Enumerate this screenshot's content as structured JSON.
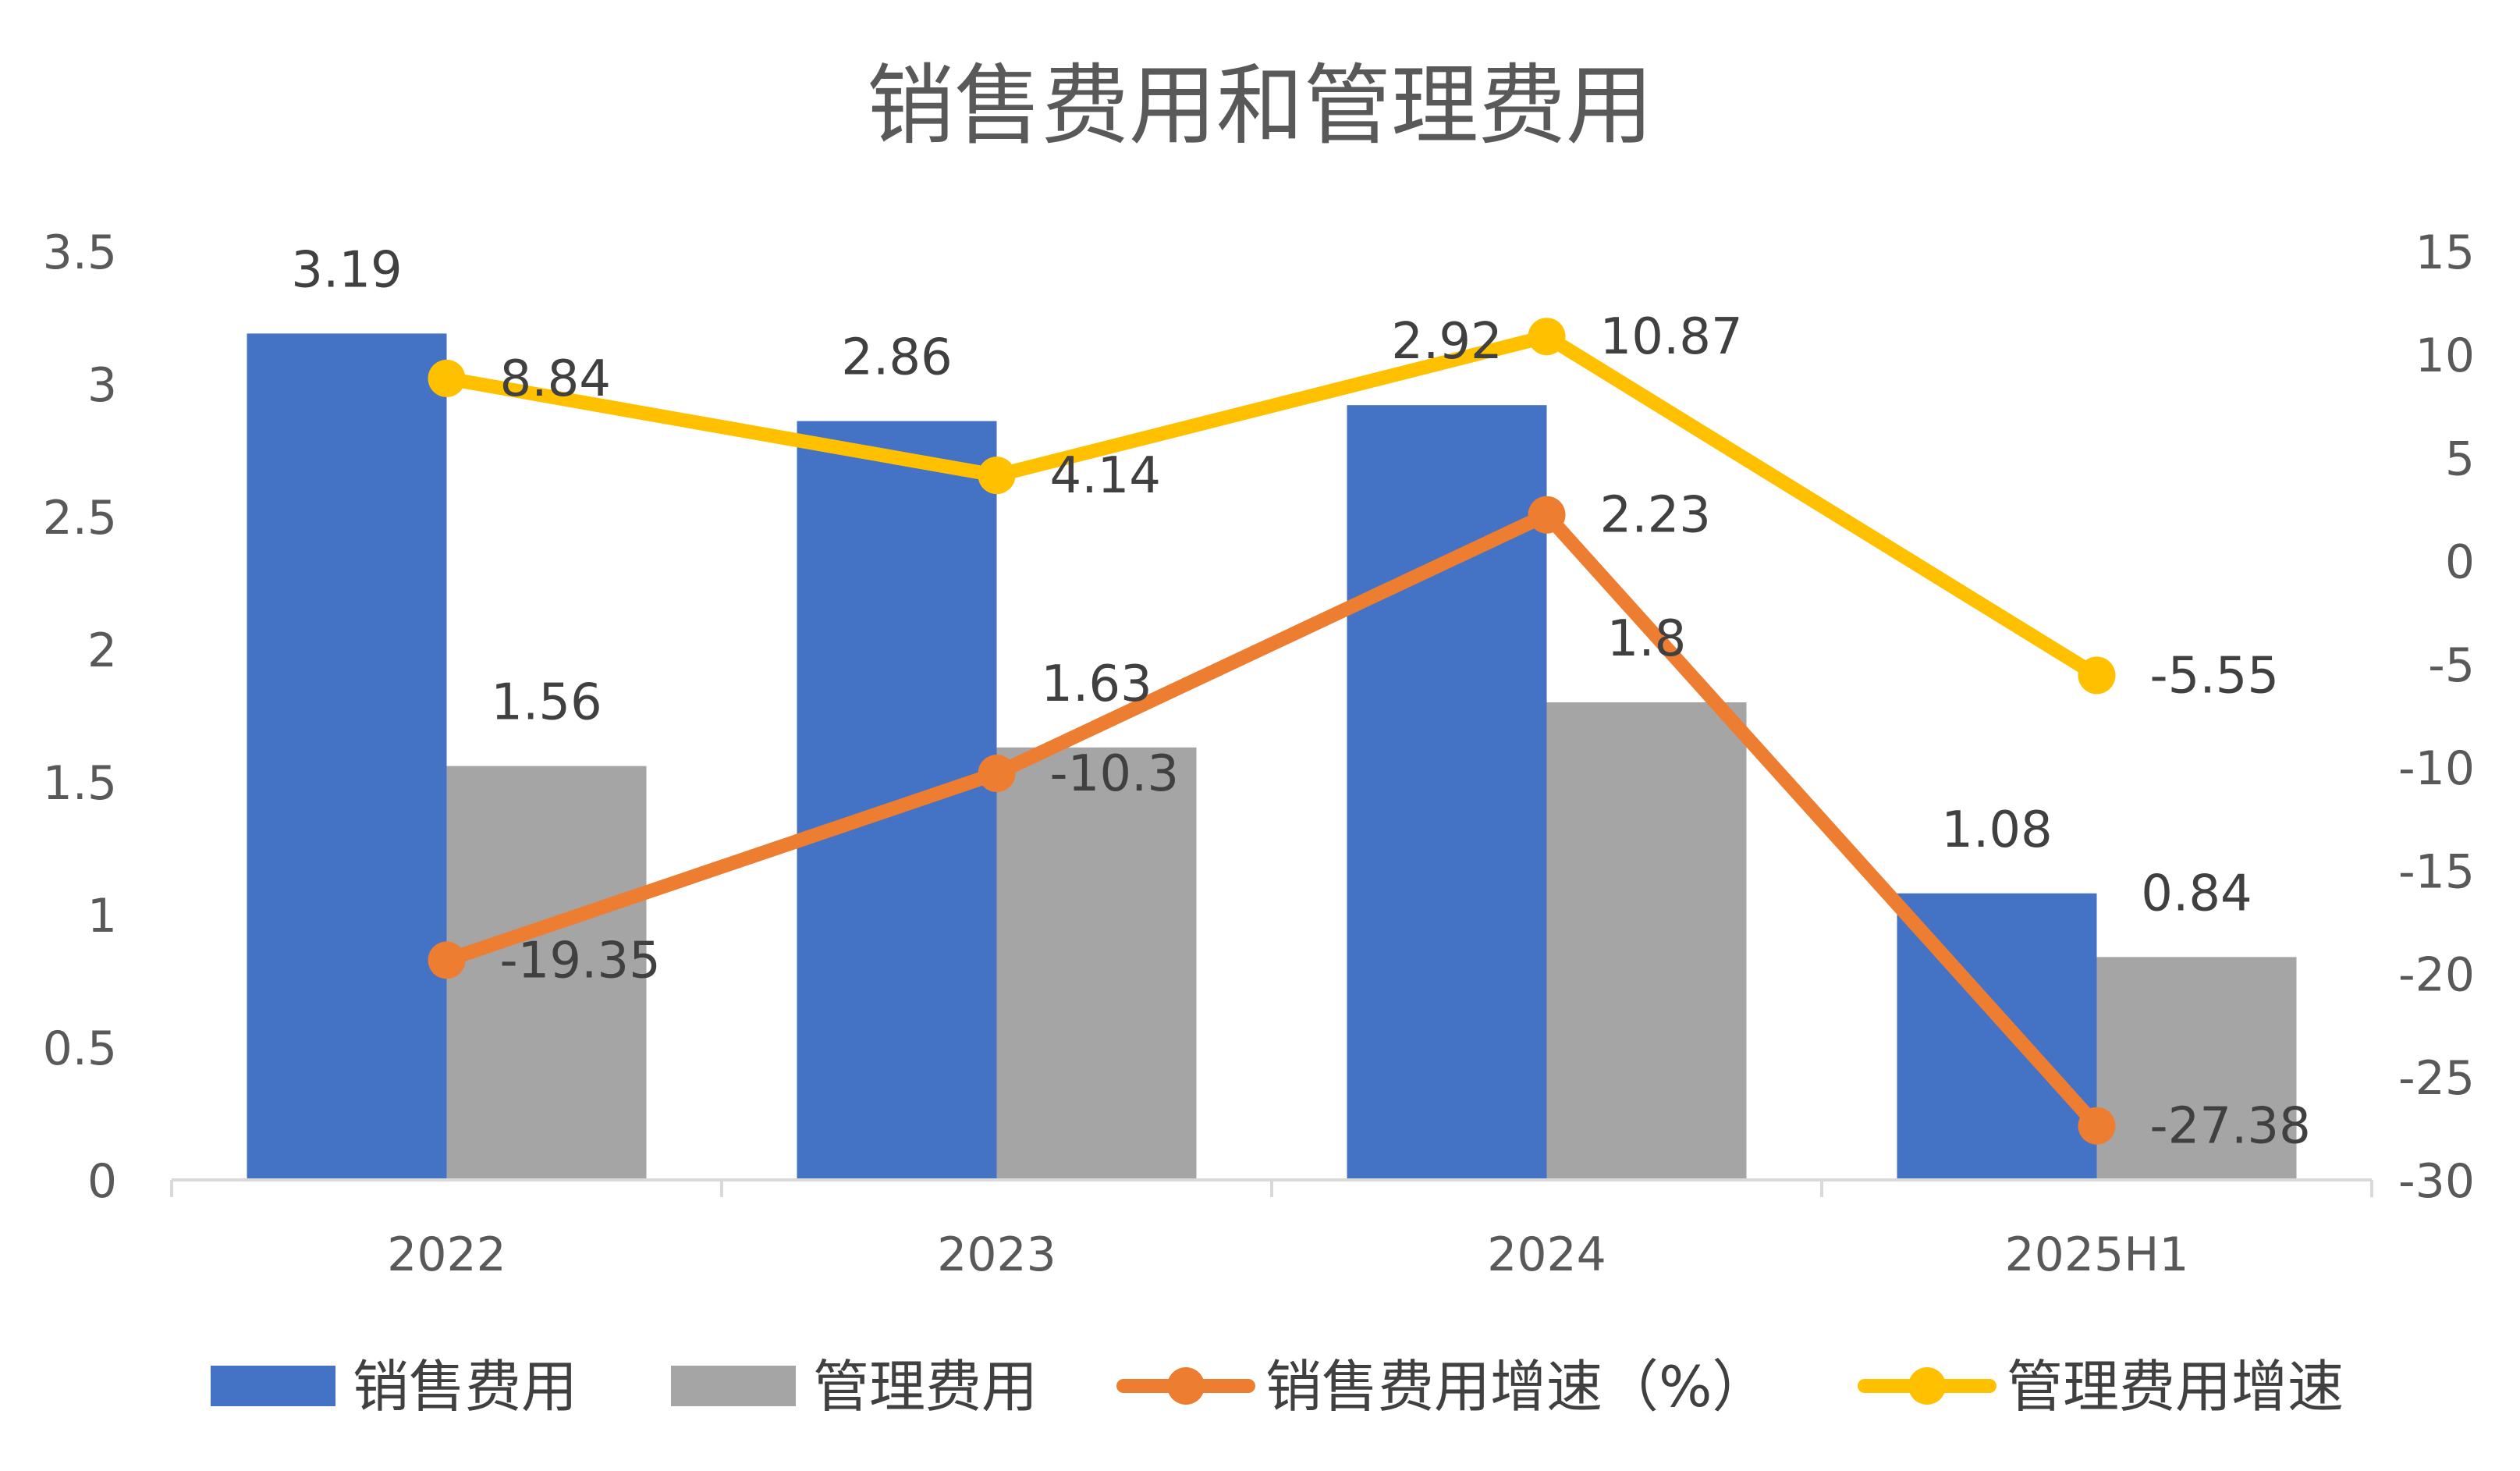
{
  "chart_data": {
    "type": "bar",
    "title": "销售费用和管理费用",
    "categories": [
      "2022",
      "2023",
      "2024",
      "2025H1"
    ],
    "bar_series": [
      {
        "name": "销售费用",
        "values": [
          3.19,
          2.86,
          2.92,
          1.08
        ],
        "labels": [
          "3.19",
          "2.86",
          "2.92",
          "1.08"
        ],
        "color": "#4472C4"
      },
      {
        "name": "管理费用",
        "values": [
          1.56,
          1.63,
          1.8,
          0.84
        ],
        "labels": [
          "1.56",
          "1.63",
          "1.8",
          "0.84"
        ],
        "color": "#A5A5A5"
      }
    ],
    "line_series": [
      {
        "name": "销售费用增速（%）",
        "values": [
          -19.35,
          -10.3,
          2.23,
          -27.38
        ],
        "labels": [
          "-19.35",
          "-10.3",
          "2.23",
          "-27.38"
        ],
        "color": "#ED7D31",
        "axis": "right"
      },
      {
        "name": "管理费用增速",
        "values": [
          8.84,
          4.14,
          10.87,
          -5.55
        ],
        "labels": [
          "8.84",
          "4.14",
          "10.87",
          "-5.55"
        ],
        "color": "#FFC000",
        "axis": "right"
      }
    ],
    "y_left": {
      "min": 0,
      "max": 3.5,
      "ticks": [
        "0",
        "0.5",
        "1",
        "1.5",
        "2",
        "2.5",
        "3",
        "3.5"
      ]
    },
    "y_right": {
      "min": -30,
      "max": 15,
      "ticks": [
        "-30",
        "-25",
        "-20",
        "-15",
        "-10",
        "-5",
        "0",
        "5",
        "10",
        "15"
      ]
    },
    "xlabel": "",
    "ylabel": "",
    "grid": false,
    "legend_position": "bottom",
    "legend": [
      "销售费用",
      "管理费用",
      "销售费用增速（%）",
      "管理费用增速"
    ]
  }
}
